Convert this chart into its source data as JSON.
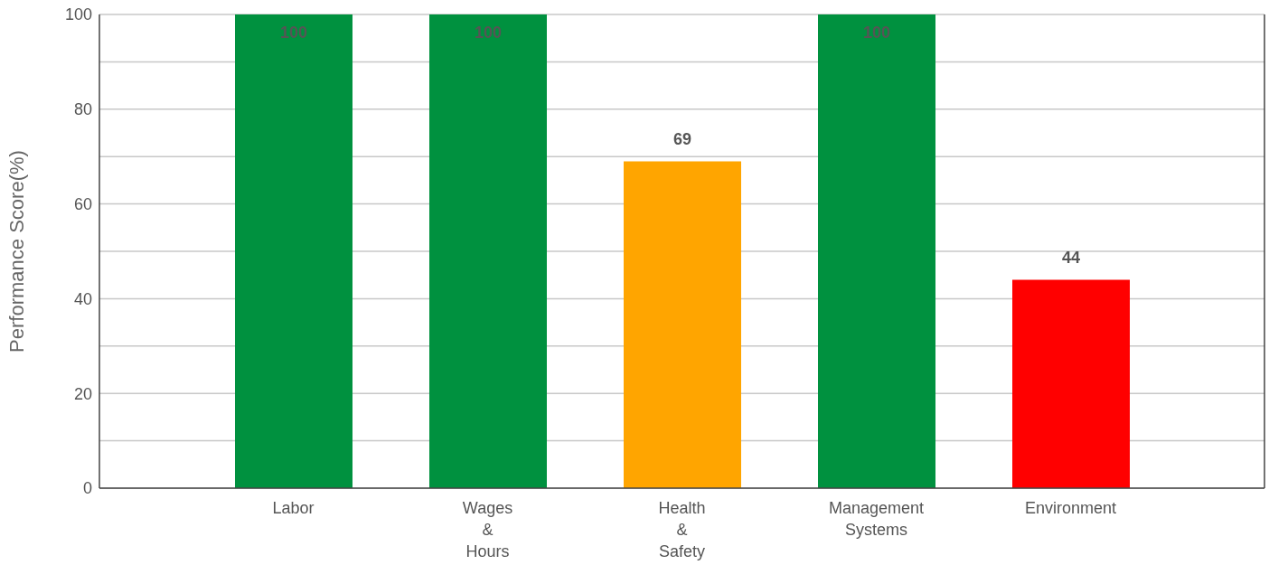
{
  "chart_data": {
    "type": "bar",
    "ylabel": "Performance Score(%)",
    "categories": [
      "Labor",
      "Wages & Hours",
      "Health & Safety",
      "Management Systems",
      "Environment"
    ],
    "values": [
      100,
      100,
      69,
      100,
      44
    ],
    "colors": [
      "#00913f",
      "#00913f",
      "#ffa500",
      "#00913f",
      "#ff0000"
    ],
    "ylim": [
      0,
      100
    ],
    "yticks": [
      0,
      {
        "value": 10,
        "label": null
      },
      20,
      {
        "value": 30,
        "label": null
      },
      40,
      {
        "value": 50,
        "label": null
      },
      60,
      {
        "value": 70,
        "label": null
      },
      80,
      {
        "value": 90,
        "label": null
      },
      100
    ],
    "grid": "y",
    "data_labels": true,
    "legend": false
  }
}
